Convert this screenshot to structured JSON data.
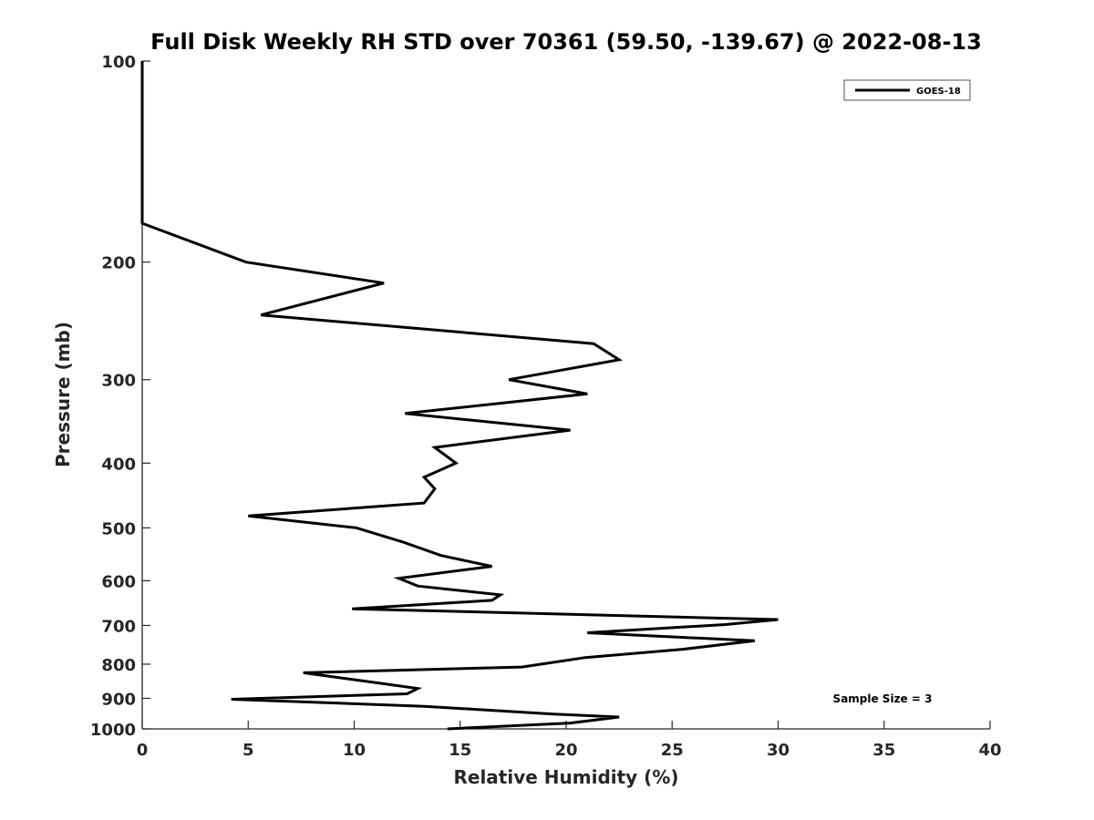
{
  "chart_data": {
    "type": "line",
    "title": "Full Disk Weekly RH STD over 70361 (59.50, -139.67) @ 2022-08-13",
    "xlabel": "Relative Humidity (%)",
    "ylabel": "Pressure (mb)",
    "xlim": [
      0,
      40
    ],
    "ylim": [
      100,
      1000
    ],
    "y_scale": "log",
    "y_reversed": true,
    "grid": false,
    "legend_position": "top-right",
    "x_ticks": [
      "0",
      "5",
      "10",
      "15",
      "20",
      "25",
      "30",
      "35",
      "40"
    ],
    "y_ticks": [
      "100",
      "200",
      "300",
      "400",
      "500",
      "600",
      "700",
      "800",
      "900",
      "1000"
    ],
    "annotation": "Sample Size = 3",
    "series": [
      {
        "name": "GOES-18",
        "color": "#000000",
        "points": [
          [
            0,
            100
          ],
          [
            0,
            150
          ],
          [
            0,
            175
          ],
          [
            4.9,
            200
          ],
          [
            11.4,
            215
          ],
          [
            5.6,
            240
          ],
          [
            21.3,
            265
          ],
          [
            22.5,
            280
          ],
          [
            17.3,
            300
          ],
          [
            21.0,
            315
          ],
          [
            12.4,
            337
          ],
          [
            20.2,
            357
          ],
          [
            13.8,
            379
          ],
          [
            14.8,
            400
          ],
          [
            13.3,
            420
          ],
          [
            13.8,
            437
          ],
          [
            13.3,
            459
          ],
          [
            5.0,
            480
          ],
          [
            10.1,
            500
          ],
          [
            12.3,
            525
          ],
          [
            14.1,
            550
          ],
          [
            16.5,
            571
          ],
          [
            12.1,
            595
          ],
          [
            13.0,
            611
          ],
          [
            16.9,
            630
          ],
          [
            16.5,
            642
          ],
          [
            9.9,
            661
          ],
          [
            30.0,
            686
          ],
          [
            27.5,
            698
          ],
          [
            21.0,
            718
          ],
          [
            28.9,
            738
          ],
          [
            25.5,
            760
          ],
          [
            20.9,
            782
          ],
          [
            17.9,
            808
          ],
          [
            7.6,
            824
          ],
          [
            11.3,
            855
          ],
          [
            13.0,
            870
          ],
          [
            12.5,
            886
          ],
          [
            4.2,
            903
          ],
          [
            13.3,
            925
          ],
          [
            19.4,
            950
          ],
          [
            22.5,
            960
          ],
          [
            20.2,
            980
          ],
          [
            14.4,
            1000
          ]
        ]
      }
    ]
  }
}
